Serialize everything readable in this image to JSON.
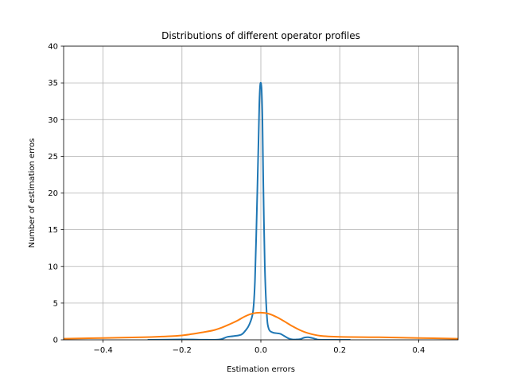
{
  "chart_data": {
    "type": "line",
    "title": "Distributions of different operator profiles",
    "xlabel": "Estimation errors",
    "ylabel": "Number of estimation erros",
    "xlim": [
      -0.5,
      0.5
    ],
    "ylim": [
      0,
      40
    ],
    "xticks": [
      -0.4,
      -0.2,
      0.0,
      0.2,
      0.4
    ],
    "xtick_labels": [
      "−0.4",
      "−0.2",
      "0.0",
      "0.2",
      "0.4"
    ],
    "yticks": [
      0,
      5,
      10,
      15,
      20,
      25,
      30,
      35,
      40
    ],
    "ytick_labels": [
      "0",
      "5",
      "10",
      "15",
      "20",
      "25",
      "30",
      "35",
      "40"
    ],
    "grid": true,
    "series": [
      {
        "color": "#1f77b4",
        "x": [
          -0.285,
          -0.2,
          -0.15,
          -0.12,
          -0.1,
          -0.085,
          -0.07,
          -0.05,
          -0.04,
          -0.03,
          -0.02,
          -0.015,
          -0.01,
          -0.006,
          -0.004,
          -0.002,
          0.0,
          0.002,
          0.004,
          0.006,
          0.01,
          0.015,
          0.02,
          0.03,
          0.04,
          0.05,
          0.06,
          0.07,
          0.08,
          0.09,
          0.1,
          0.11,
          0.12,
          0.13,
          0.14,
          0.15,
          0.2,
          0.225
        ],
        "y": [
          0.0,
          0.05,
          0.02,
          0.0,
          0.1,
          0.4,
          0.5,
          0.7,
          1.2,
          2.0,
          3.8,
          8.0,
          18.0,
          27.0,
          32.0,
          34.5,
          35.0,
          34.0,
          30.0,
          22.0,
          10.0,
          3.5,
          1.5,
          1.0,
          0.9,
          0.8,
          0.5,
          0.2,
          0.05,
          0.05,
          0.1,
          0.3,
          0.35,
          0.25,
          0.1,
          0.02,
          0.0,
          0.0
        ]
      },
      {
        "color": "#ff7f0e",
        "x": [
          -0.5,
          -0.4,
          -0.3,
          -0.25,
          -0.2,
          -0.15,
          -0.12,
          -0.1,
          -0.08,
          -0.06,
          -0.04,
          -0.02,
          0.0,
          0.02,
          0.04,
          0.06,
          0.08,
          0.1,
          0.12,
          0.15,
          0.2,
          0.3,
          0.4,
          0.5
        ],
        "y": [
          0.15,
          0.25,
          0.35,
          0.45,
          0.6,
          1.0,
          1.3,
          1.65,
          2.1,
          2.6,
          3.2,
          3.6,
          3.7,
          3.55,
          3.1,
          2.5,
          1.85,
          1.3,
          0.9,
          0.55,
          0.4,
          0.35,
          0.25,
          0.15
        ]
      }
    ]
  }
}
